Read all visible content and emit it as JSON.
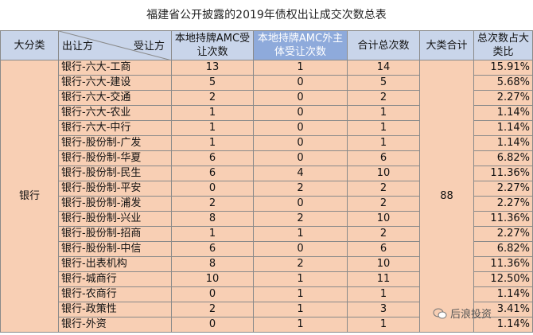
{
  "title": "福建省公开披露的2019年债权出让成交次数总表",
  "table": {
    "header": {
      "category": "大分类",
      "seller": "出让方",
      "buyer": "受让方",
      "local_amc": "本地持牌AMC受让次数",
      "other": "本地持牌AMC外主体受让次数",
      "total": "合计总次数",
      "category_total": "大类合计",
      "share": "总次数占大类比"
    },
    "category": "银行",
    "category_total": 88,
    "rows": [
      [
        "银行-六大-工商",
        13,
        1,
        14,
        "15.91%"
      ],
      [
        "银行-六大-建设",
        5,
        0,
        5,
        "5.68%"
      ],
      [
        "银行-六大-交通",
        2,
        0,
        2,
        "2.27%"
      ],
      [
        "银行-六大-农业",
        1,
        0,
        1,
        "1.14%"
      ],
      [
        "银行-六大-中行",
        1,
        0,
        1,
        "1.14%"
      ],
      [
        "银行-股份制-广发",
        1,
        0,
        1,
        "1.14%"
      ],
      [
        "银行-股份制-华夏",
        6,
        0,
        6,
        "6.82%"
      ],
      [
        "银行-股份制-民生",
        6,
        4,
        10,
        "11.36%"
      ],
      [
        "银行-股份制-平安",
        0,
        2,
        2,
        "2.27%"
      ],
      [
        "银行-股份制-浦发",
        2,
        0,
        2,
        "2.27%"
      ],
      [
        "银行-股份制-兴业",
        8,
        2,
        10,
        "11.36%"
      ],
      [
        "银行-股份制-招商",
        1,
        1,
        2,
        "2.27%"
      ],
      [
        "银行-股份制-中信",
        6,
        0,
        6,
        "6.82%"
      ],
      [
        "银行-出表机构",
        8,
        2,
        10,
        "11.36%"
      ],
      [
        "银行-城商行",
        10,
        1,
        11,
        "12.50%"
      ],
      [
        "银行-农商行",
        0,
        1,
        1,
        "1.14%"
      ],
      [
        "银行-政策性",
        2,
        1,
        3,
        "3.41%"
      ],
      [
        "银行-外资",
        0,
        1,
        1,
        "1.14%"
      ]
    ]
  },
  "watermark": "后浪投资"
}
